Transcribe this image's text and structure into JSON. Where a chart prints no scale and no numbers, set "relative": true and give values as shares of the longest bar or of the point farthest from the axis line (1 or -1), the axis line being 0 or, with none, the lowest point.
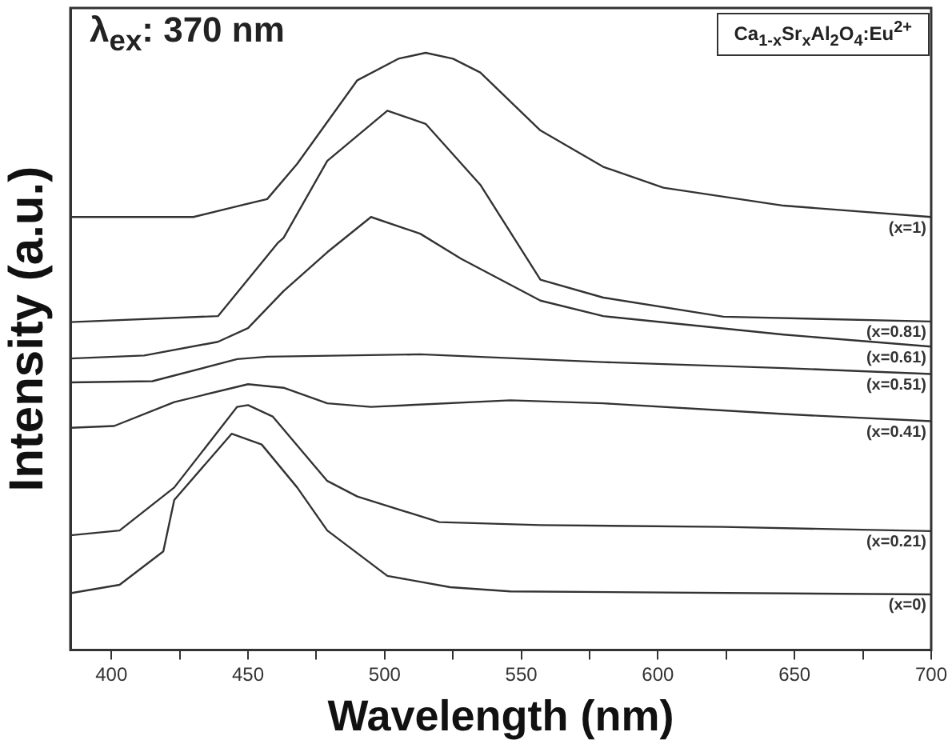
{
  "chart_data": {
    "type": "line",
    "relative": true,
    "xlabel": "Wavelength (nm)",
    "ylabel": "Intensity (a.u.)",
    "annotations": [
      "λ$_{ex}$: 370 nm",
      "Ca$_{1-x}$Sr$_{x}$Al$_{2}$O$_{4}$:Eu$^{2+}$"
    ],
    "xlim": [
      385,
      700
    ],
    "xticks": [
      400,
      {
        "value": 425,
        "label": null
      },
      450,
      {
        "value": 475,
        "label": null
      },
      500,
      {
        "value": 525,
        "label": null
      },
      550,
      {
        "value": 575,
        "label": null
      },
      600,
      {
        "value": 625,
        "label": null
      },
      650,
      {
        "value": 675,
        "label": null
      },
      700
    ],
    "grid": false,
    "legend": false,
    "marker": "none",
    "line_style": "solid",
    "series": [
      {
        "name": "(x=1)",
        "color": "#333333",
        "x": [
          385,
          430,
          446,
          457,
          468,
          490,
          505,
          515,
          525,
          535,
          557,
          580,
          602,
          646,
          700
        ],
        "values": [
          0.725,
          0.725,
          0.743,
          0.755,
          0.814,
          0.954,
          0.99,
          1.0,
          0.99,
          0.967,
          0.87,
          0.809,
          0.774,
          0.744,
          0.725
        ]
      },
      {
        "name": "(x=0.81)",
        "color": "#333333",
        "x": [
          385,
          439,
          461,
          463,
          479,
          501,
          515,
          535,
          557,
          580,
          624,
          700
        ],
        "values": [
          0.549,
          0.559,
          0.682,
          0.69,
          0.819,
          0.903,
          0.881,
          0.779,
          0.62,
          0.59,
          0.558,
          0.55
        ]
      },
      {
        "name": "(x=0.61)",
        "color": "#333333",
        "x": [
          385,
          412,
          439,
          450,
          463,
          479,
          495,
          513,
          528,
          557,
          580,
          646,
          700
        ],
        "values": [
          0.488,
          0.493,
          0.516,
          0.539,
          0.601,
          0.666,
          0.725,
          0.697,
          0.655,
          0.585,
          0.559,
          0.528,
          0.508
        ]
      },
      {
        "name": "(x=0.51)",
        "color": "#333333",
        "x": [
          385,
          415,
          446,
          457,
          513,
          580,
          646,
          700
        ],
        "values": [
          0.448,
          0.45,
          0.487,
          0.491,
          0.495,
          0.482,
          0.472,
          0.462
        ]
      },
      {
        "name": "(x=0.41)",
        "color": "#333333",
        "x": [
          385,
          401,
          423,
          450,
          463,
          479,
          495,
          546,
          580,
          646,
          700
        ],
        "values": [
          0.372,
          0.375,
          0.415,
          0.445,
          0.439,
          0.413,
          0.407,
          0.418,
          0.413,
          0.395,
          0.383
        ]
      },
      {
        "name": "(x=0.21)",
        "color": "#333333",
        "x": [
          385,
          403,
          423,
          446,
          450,
          459,
          479,
          490,
          520,
          557,
          624,
          700
        ],
        "values": [
          0.192,
          0.2,
          0.272,
          0.407,
          0.41,
          0.391,
          0.283,
          0.257,
          0.214,
          0.209,
          0.206,
          0.199
        ]
      },
      {
        "name": "(x=0)",
        "color": "#333333",
        "x": [
          385,
          403,
          419,
          423,
          444,
          455,
          468,
          479,
          501,
          524,
          546,
          700
        ],
        "values": [
          0.095,
          0.109,
          0.165,
          0.251,
          0.362,
          0.344,
          0.272,
          0.2,
          0.124,
          0.105,
          0.098,
          0.093
        ]
      }
    ]
  }
}
